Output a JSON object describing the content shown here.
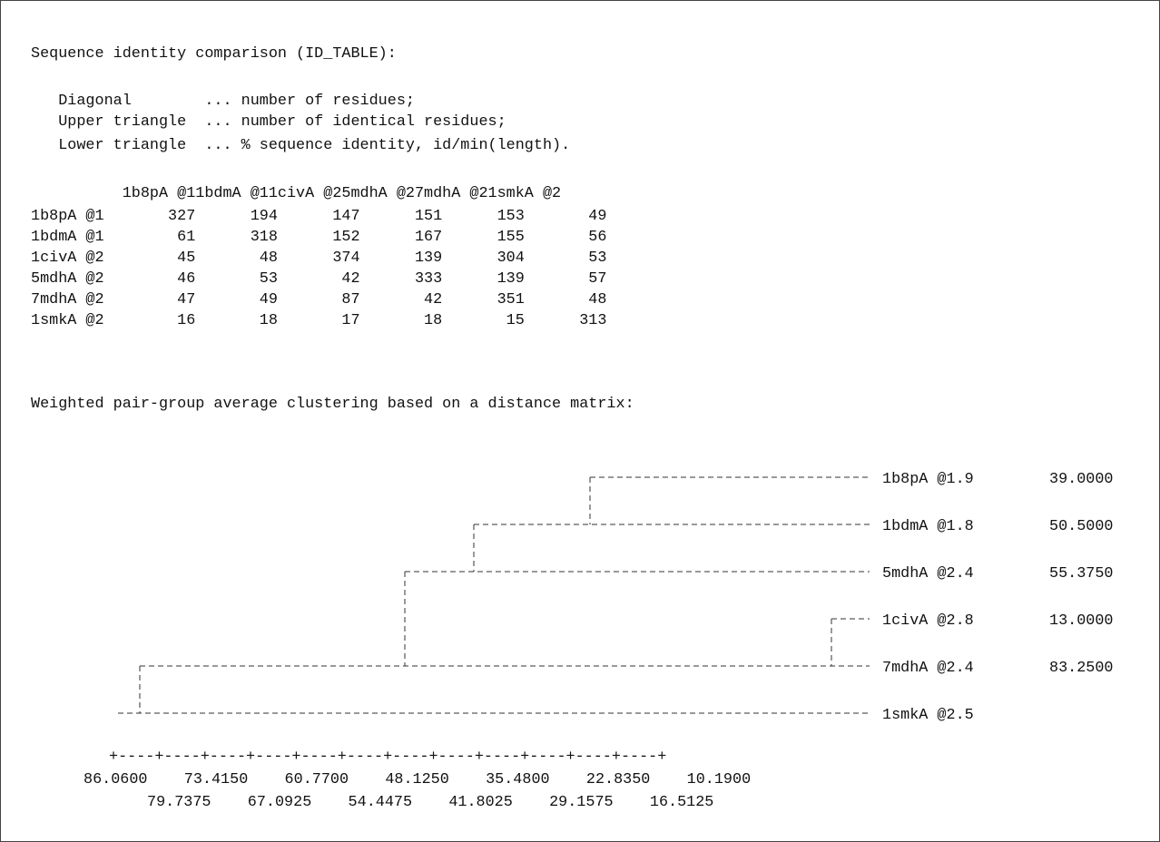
{
  "identity": {
    "title": "Sequence identity comparison (ID_TABLE):",
    "legend": [
      "   Diagonal        ... number of residues;",
      "   Upper triangle  ... number of identical residues;",
      "   Lower triangle  ... % sequence identity, id/min(length)."
    ],
    "header": "          1b8pA @11bdmA @11civA @25mdhA @27mdhA @21smkA @2",
    "rows": [
      "1b8pA @1       327      194      147      151      153       49",
      "1bdmA @1        61      318      152      167      155       56",
      "1civA @2        45       48      374      139      304       53",
      "5mdhA @2        46       53       42      333      139       57",
      "7mdhA @2        47       49       87       42      351       48",
      "1smkA @2        16       18       17       18       15      313"
    ]
  },
  "clustering": {
    "title": "Weighted pair-group average clustering based on a distance matrix:",
    "leaves": [
      {
        "label": "1b8pA @1.9",
        "height": "39.0000"
      },
      {
        "label": "1bdmA @1.8",
        "height": "50.5000"
      },
      {
        "label": "5mdhA @2.4",
        "height": "55.3750"
      },
      {
        "label": "1civA @2.8",
        "height": "13.0000"
      },
      {
        "label": "7mdhA @2.4",
        "height": "83.2500"
      },
      {
        "label": "1smkA @2.5",
        "height": ""
      }
    ],
    "axis_ruler": "+----+----+----+----+----+----+----+----+----+----+----+----+",
    "axis_row1": "86.0600    73.4150    60.7700    48.1250    35.4800    22.8350    10.1900",
    "axis_row2": "79.7375    67.0925    54.4475    41.8025    29.1575    16.5125"
  }
}
